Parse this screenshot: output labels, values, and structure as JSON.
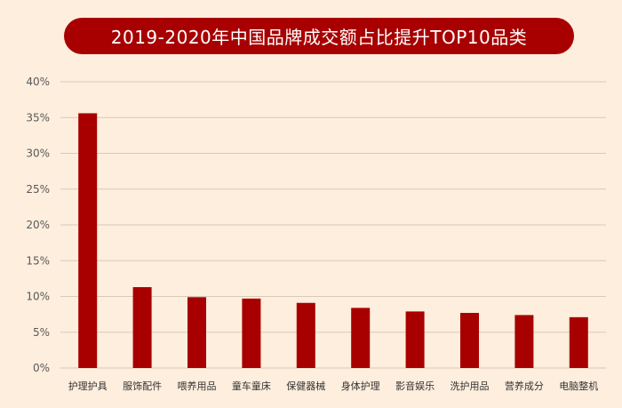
{
  "title": "2019-2020年中国品牌成交额占比提升TOP10品类",
  "colors": {
    "background": "#fdeedd",
    "title_bg": "#a80000",
    "title_text": "#ffffff",
    "bar": "#a80000",
    "gridline": "#d9c9b8",
    "axis_text": "#595959"
  },
  "chart_data": {
    "type": "bar",
    "title": "2019-2020年中国品牌成交额占比提升TOP10品类",
    "xlabel": "",
    "ylabel": "",
    "categories": [
      "护理护具",
      "服饰配件",
      "喂养用品",
      "童车童床",
      "保健器械",
      "身体护理",
      "影音娱乐",
      "洗护用品",
      "营养成分",
      "电脑整机"
    ],
    "values": [
      35.6,
      11.3,
      9.9,
      9.7,
      9.1,
      8.4,
      7.9,
      7.7,
      7.4,
      7.1
    ],
    "ylim": [
      0,
      40
    ],
    "yticks": [
      "0%",
      "5%",
      "10%",
      "15%",
      "20%",
      "25%",
      "30%",
      "35%",
      "40%"
    ],
    "grid": true,
    "legend": "none"
  }
}
